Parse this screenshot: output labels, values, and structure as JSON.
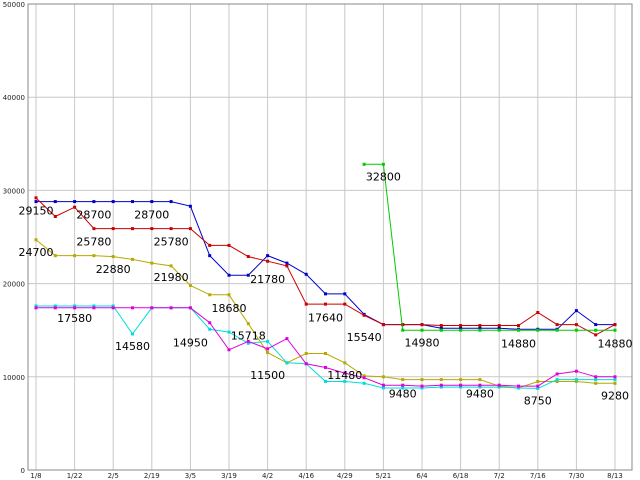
{
  "chart_data": {
    "type": "line",
    "title": "",
    "xlabel": "",
    "ylabel": "",
    "ylim": [
      0,
      50000
    ],
    "grid": true,
    "y_ticks": [
      0,
      10000,
      20000,
      30000,
      40000,
      50000
    ],
    "y_tick_labels": [
      "0",
      "10000",
      "20000",
      "30000",
      "40000",
      "50000"
    ],
    "x_tick_positions": [
      0,
      2,
      4,
      6,
      8,
      10,
      12,
      14,
      16,
      18,
      20,
      22,
      24,
      26,
      28,
      30
    ],
    "x_tick_labels": [
      "1/8",
      "1/22",
      "2/5",
      "2/19",
      "3/5",
      "3/19",
      "4/2",
      "4/16",
      "4/29",
      "5/21",
      "6/4",
      "6/18",
      "7/2",
      "7/16",
      "7/30",
      "8/13"
    ],
    "series": [
      {
        "color": "#0000cc",
        "x": [
          0,
          1,
          2,
          3,
          4,
          5,
          6,
          7,
          8,
          9,
          10,
          11,
          12,
          13,
          14,
          15,
          16,
          17,
          18,
          19,
          20,
          21,
          22,
          23,
          24,
          25,
          26,
          27,
          28,
          29,
          30
        ],
        "y": [
          28800,
          28800,
          28800,
          28800,
          28800,
          28800,
          28800,
          28800,
          28300,
          23000,
          20900,
          20900,
          23000,
          22200,
          21000,
          18900,
          18900,
          16700,
          15600,
          15600,
          15600,
          15200,
          15200,
          15200,
          15200,
          15100,
          15100,
          15100,
          17100,
          15600,
          15600
        ]
      },
      {
        "color": "#cc0000",
        "x": [
          0,
          1,
          2,
          3,
          4,
          5,
          6,
          7,
          8,
          9,
          10,
          11,
          12,
          13,
          14,
          15,
          16,
          17,
          18,
          19,
          20,
          21,
          22,
          23,
          24,
          25,
          26,
          27,
          28,
          29,
          30
        ],
        "y": [
          29200,
          27200,
          28200,
          25900,
          25900,
          25900,
          25900,
          25900,
          25900,
          24100,
          24100,
          22900,
          22400,
          21900,
          17800,
          17800,
          17800,
          16600,
          15600,
          15600,
          15600,
          15500,
          15500,
          15500,
          15500,
          15500,
          16900,
          15600,
          15600,
          14500,
          15600
        ]
      },
      {
        "color": "#00cc00",
        "x": [
          17,
          18,
          19,
          20,
          21,
          22,
          23,
          24,
          25,
          26,
          27,
          28,
          29,
          30
        ],
        "y": [
          32800,
          32800,
          15000,
          15000,
          15000,
          15000,
          15000,
          15000,
          15000,
          15000,
          15000,
          15000,
          15000,
          15000
        ]
      },
      {
        "color": "#b8a800",
        "x": [
          0,
          1,
          2,
          3,
          4,
          5,
          6,
          7,
          8,
          9,
          10,
          11,
          12,
          13,
          14,
          15,
          16,
          17,
          18,
          19,
          20,
          21,
          22,
          23,
          24,
          25,
          26,
          27,
          28,
          29,
          30
        ],
        "y": [
          24700,
          23000,
          23000,
          23000,
          22900,
          22600,
          22200,
          21900,
          19800,
          18800,
          18800,
          15700,
          12600,
          11500,
          12500,
          12500,
          11500,
          10100,
          10000,
          9700,
          9700,
          9700,
          9700,
          9700,
          9000,
          8800,
          9500,
          9500,
          9500,
          9300,
          9300
        ]
      },
      {
        "color": "#00dddd",
        "x": [
          0,
          1,
          2,
          3,
          4,
          5,
          6,
          7,
          8,
          9,
          10,
          11,
          12,
          13,
          14,
          15,
          16,
          17,
          18,
          19,
          20,
          21,
          22,
          23,
          24,
          25,
          26,
          27,
          28,
          29,
          30
        ],
        "y": [
          17600,
          17600,
          17600,
          17600,
          17600,
          14600,
          17400,
          17400,
          17400,
          15100,
          14800,
          13600,
          13800,
          11500,
          11400,
          9500,
          9500,
          9300,
          8800,
          8800,
          8800,
          8900,
          8900,
          8900,
          8900,
          8800,
          8750,
          9700,
          9700,
          9700,
          9700
        ]
      },
      {
        "color": "#dd00dd",
        "x": [
          0,
          1,
          2,
          3,
          4,
          5,
          6,
          7,
          8,
          9,
          10,
          11,
          12,
          13,
          14,
          15,
          16,
          17,
          18,
          19,
          20,
          21,
          22,
          23,
          24,
          25,
          26,
          27,
          28,
          29,
          30
        ],
        "y": [
          17400,
          17400,
          17400,
          17400,
          17400,
          17400,
          17400,
          17400,
          17400,
          15800,
          12900,
          13800,
          13000,
          14100,
          11400,
          11000,
          10400,
          9900,
          9100,
          9100,
          9000,
          9100,
          9100,
          9100,
          9100,
          9000,
          9000,
          10300,
          10600,
          10000,
          10000
        ]
      }
    ],
    "annotations": [
      {
        "text": "29150",
        "x": 0,
        "y": 29150
      },
      {
        "text": "28700",
        "x": 3,
        "y": 28700
      },
      {
        "text": "28700",
        "x": 6,
        "y": 28700
      },
      {
        "text": "25780",
        "x": 3,
        "y": 25780
      },
      {
        "text": "25780",
        "x": 7,
        "y": 25780
      },
      {
        "text": "24700",
        "x": 0,
        "y": 24700
      },
      {
        "text": "22880",
        "x": 4,
        "y": 22880
      },
      {
        "text": "21980",
        "x": 7,
        "y": 21980
      },
      {
        "text": "21780",
        "x": 12,
        "y": 21780
      },
      {
        "text": "18680",
        "x": 10,
        "y": 18680
      },
      {
        "text": "17580",
        "x": 2,
        "y": 17580
      },
      {
        "text": "17640",
        "x": 15,
        "y": 17640
      },
      {
        "text": "15718",
        "x": 11,
        "y": 15718
      },
      {
        "text": "15540",
        "x": 17,
        "y": 15540
      },
      {
        "text": "14580",
        "x": 5,
        "y": 14580
      },
      {
        "text": "14950",
        "x": 8,
        "y": 14950
      },
      {
        "text": "14980",
        "x": 20,
        "y": 14980
      },
      {
        "text": "14880",
        "x": 25,
        "y": 14880
      },
      {
        "text": "14880",
        "x": 30,
        "y": 14880
      },
      {
        "text": "32800",
        "x": 18,
        "y": 32800
      },
      {
        "text": "11500",
        "x": 12,
        "y": 11500
      },
      {
        "text": "11480",
        "x": 16,
        "y": 11480
      },
      {
        "text": "9480",
        "x": 19,
        "y": 9480
      },
      {
        "text": "9480",
        "x": 23,
        "y": 9480
      },
      {
        "text": "8750",
        "x": 26,
        "y": 8750
      },
      {
        "text": "9280",
        "x": 30,
        "y": 9280
      }
    ]
  }
}
